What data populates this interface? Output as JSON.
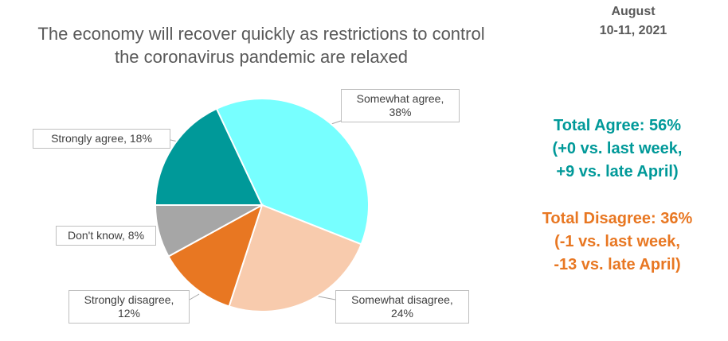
{
  "chart_data": {
    "type": "pie",
    "title": [
      "The economy will recover quickly as restrictions to control",
      "the coronavirus pandemic are relaxed"
    ],
    "subtitle": [
      "August",
      "10-11, 2021"
    ],
    "values": [
      18,
      38,
      24,
      12,
      8
    ],
    "value_labels": [
      "Strongly agree, 18%",
      "Somewhat agree, 38%",
      "Somewhat disagree, 24%",
      "Strongly disagree, 12%",
      "Don't know, 8%"
    ],
    "colors": [
      "#009999",
      "#77FFFF",
      "#F8CBAD",
      "#E87722",
      "#A6A6A6"
    ],
    "annotations": [
      {
        "color": "#009999",
        "lines": [
          "Total Agree: 56%",
          "(+0 vs. last week,",
          "+9 vs. late April)"
        ]
      },
      {
        "color": "#E87722",
        "lines": [
          "Total Disagree: 36%",
          "(-1 vs. last week,",
          "-13 vs. late April)"
        ]
      }
    ]
  }
}
